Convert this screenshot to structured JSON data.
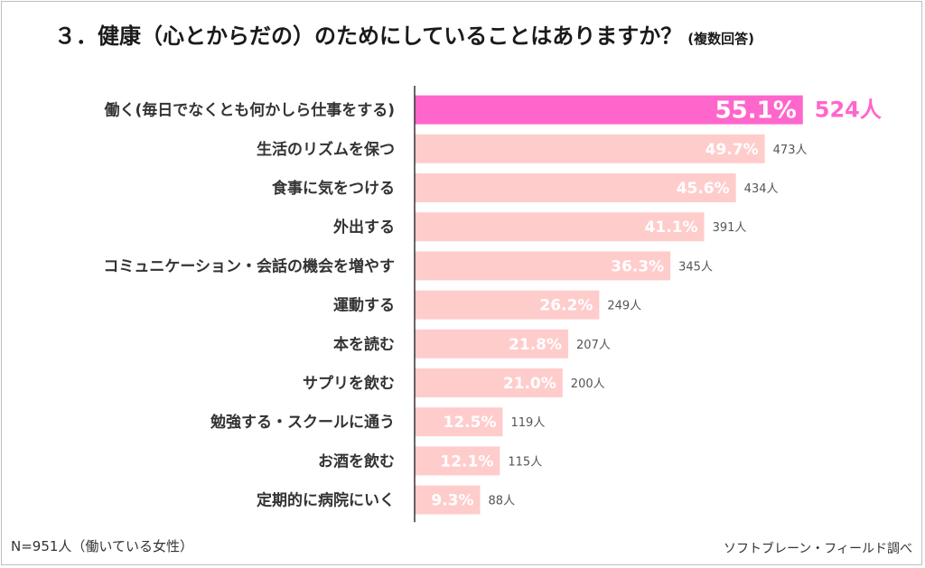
{
  "title": "３．健康（心とからだの）のためにしていることはありますか？",
  "title_note": "(複数回答)",
  "footer_left": "N=951人（働いている女性）",
  "footer_right": "ソフトブレーン・フィールド調べ",
  "colors": {
    "highlight_bar": "#ff66cc",
    "highlight_count_text": "#ff66cc",
    "bar": "#ffcccc",
    "axis": "#333333"
  },
  "chart_data": {
    "type": "bar",
    "orientation": "horizontal",
    "xlim": [
      0,
      60
    ],
    "highlight_index": 0,
    "categories": [
      "働く(毎日でなくとも何かしら仕事をする)",
      "生活のリズムを保つ",
      "食事に気をつける",
      "外出する",
      "コミュニケーション・会話の機会を増やす",
      "運動する",
      "本を読む",
      "サプリを飲む",
      "勉強する・スクールに通う",
      "お酒を飲む",
      "定期的に病院にいく"
    ],
    "values": [
      55.1,
      49.7,
      45.6,
      41.1,
      36.3,
      26.2,
      21.8,
      21.0,
      12.5,
      12.1,
      9.3
    ],
    "value_labels": [
      "55.1%",
      "49.7%",
      "45.6%",
      "41.1%",
      "36.3%",
      "26.2%",
      "21.8%",
      "21.0%",
      "12.5%",
      "12.1%",
      "9.3%"
    ],
    "counts": [
      524,
      473,
      434,
      391,
      345,
      249,
      207,
      200,
      119,
      115,
      88
    ],
    "count_labels": [
      "524人",
      "473人",
      "434人",
      "391人",
      "345人",
      "249人",
      "207人",
      "200人",
      "119人",
      "115人",
      "88人"
    ]
  }
}
